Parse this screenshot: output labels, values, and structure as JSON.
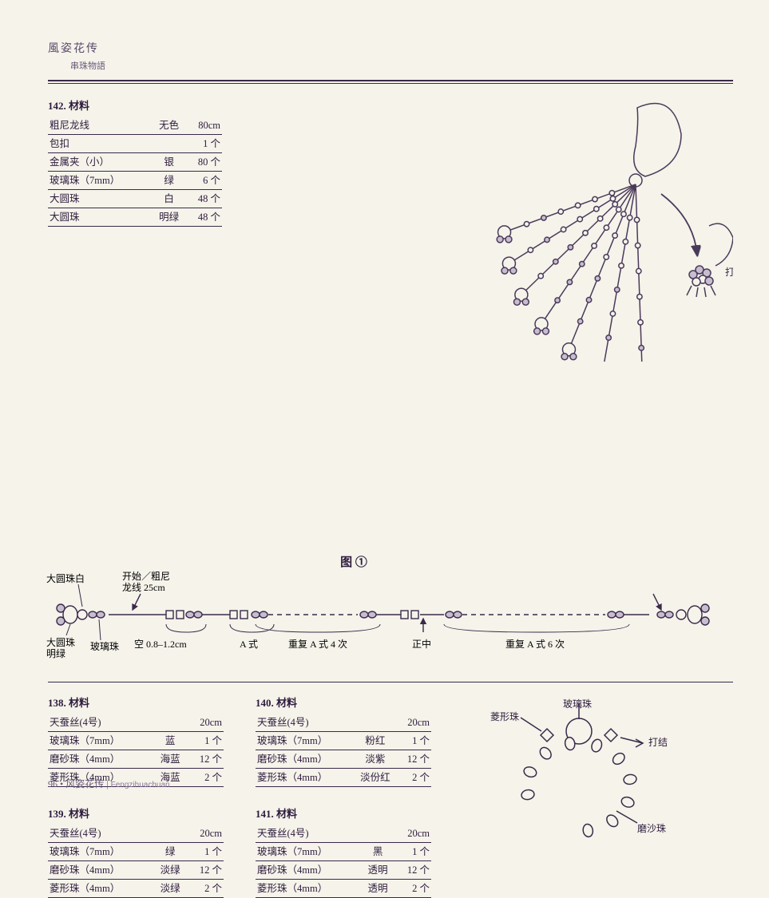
{
  "book": {
    "title": "風姿花传",
    "subtitle": "串珠物語"
  },
  "section142": {
    "title": "142. 材料",
    "rows": [
      {
        "item": "粗尼龙线",
        "color": "无色",
        "qty": "80cm"
      },
      {
        "item": "包扣",
        "color": "",
        "qty": "1 个"
      },
      {
        "item": "金属夹（小）",
        "color": "银",
        "qty": "80 个"
      },
      {
        "item": "玻璃珠（7mm）",
        "color": "绿",
        "qty": "6 个"
      },
      {
        "item": "大圆珠",
        "color": "白",
        "qty": "48 个"
      },
      {
        "item": "大圆珠",
        "color": "明绿",
        "qty": "48 个"
      }
    ]
  },
  "tassel": {
    "knot_label": "打结",
    "stroke": "#4a3a5a",
    "fill": "#C8BDCF",
    "bg": "none"
  },
  "fig1": {
    "label": "图 ①",
    "labels": {
      "big_white": "大圆珠白",
      "big_green": "大圆珠\n明绿",
      "glass": "玻璃珠",
      "start": "开始／粗尼\n龙线 25cm",
      "space": "空 0.8–1.2cm",
      "a_style": "A 式",
      "repeat4": "重复 A 式 4 次",
      "center": "正中",
      "repeat6": "重复 A 式 6 次"
    },
    "stroke": "#3a2a4a"
  },
  "section138": {
    "title": "138. 材料",
    "rows": [
      {
        "item": "天蚕丝(4号)",
        "color": "",
        "qty": "20cm"
      },
      {
        "item": "玻璃珠（7mm）",
        "color": "蓝",
        "qty": "1 个"
      },
      {
        "item": "磨砂珠（4mm）",
        "color": "海蓝",
        "qty": "12 个"
      },
      {
        "item": "菱形珠（4mm）",
        "color": "海蓝",
        "qty": "2 个"
      }
    ]
  },
  "section139": {
    "title": "139. 材料",
    "rows": [
      {
        "item": "天蚕丝(4号)",
        "color": "",
        "qty": "20cm"
      },
      {
        "item": "玻璃珠（7mm）",
        "color": "绿",
        "qty": "1 个"
      },
      {
        "item": "磨砂珠（4mm）",
        "color": "淡绿",
        "qty": "12 个"
      },
      {
        "item": "菱形珠（4mm）",
        "color": "淡绿",
        "qty": "2 个"
      }
    ]
  },
  "section140": {
    "title": "140. 材料",
    "rows": [
      {
        "item": "天蚕丝(4号)",
        "color": "",
        "qty": "20cm"
      },
      {
        "item": "玻璃珠（7mm）",
        "color": "粉红",
        "qty": "1 个"
      },
      {
        "item": "磨砂珠（4mm）",
        "color": "淡紫",
        "qty": "12 个"
      },
      {
        "item": "菱形珠（4mm）",
        "color": "淡份红",
        "qty": "2 个"
      }
    ]
  },
  "section141": {
    "title": "141. 材料",
    "rows": [
      {
        "item": "天蚕丝(4号)",
        "color": "",
        "qty": "20cm"
      },
      {
        "item": "玻璃珠（7mm）",
        "color": "黑",
        "qty": "1 个"
      },
      {
        "item": "磨砂珠（4mm）",
        "color": "透明",
        "qty": "12 个"
      },
      {
        "item": "菱形珠（4mm）",
        "color": "透明",
        "qty": "2 个"
      }
    ]
  },
  "bracelet": {
    "labels": {
      "glass": "玻璃珠",
      "diamond": "菱形珠",
      "knot": "打结",
      "frosted": "磨沙珠"
    },
    "stroke": "#3a2a4a"
  },
  "footer": {
    "page": "96",
    "book": "风姿花传",
    "roman": "Fengzihuachuan"
  }
}
